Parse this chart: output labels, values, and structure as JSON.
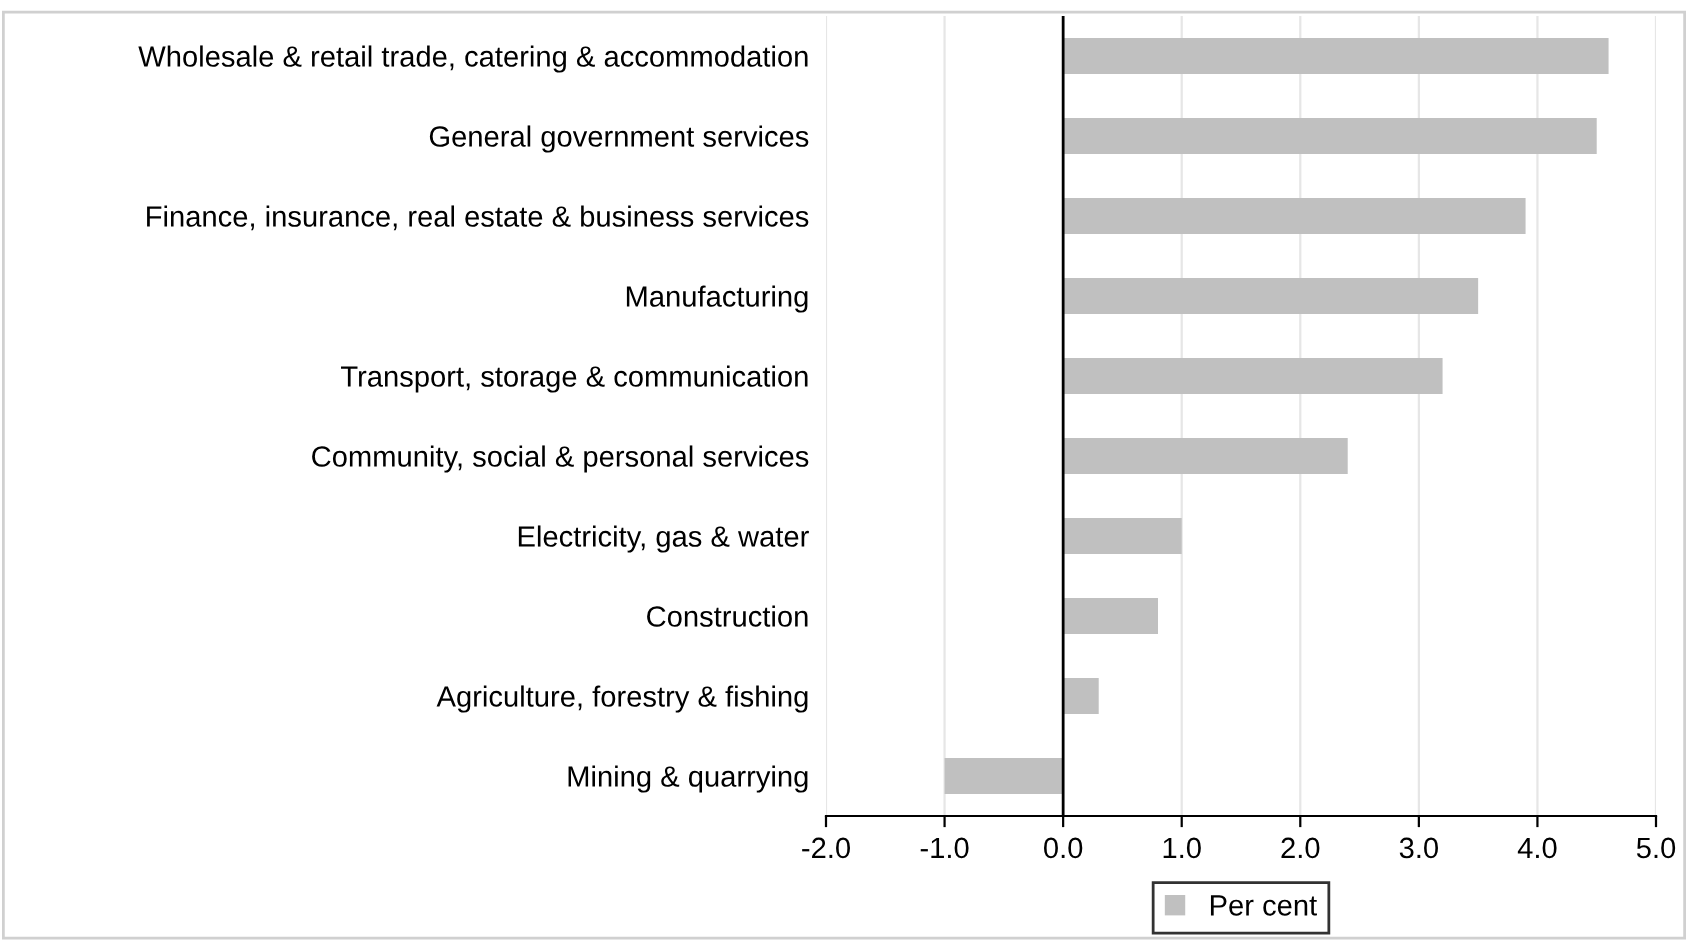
{
  "chart_data": {
    "type": "bar",
    "orientation": "horizontal",
    "categories": [
      "Wholesale & retail trade, catering & accommodation",
      "General government services",
      "Finance, insurance, real estate & business services",
      "Manufacturing",
      "Transport, storage & communication",
      "Community, social & personal services",
      "Electricity, gas & water",
      "Construction",
      "Agriculture, forestry & fishing",
      "Mining & quarrying"
    ],
    "series": [
      {
        "name": "Per cent",
        "color": "#c0c0c0",
        "values": [
          4.6,
          4.5,
          3.9,
          3.5,
          3.2,
          2.4,
          1.0,
          0.8,
          0.3,
          -1.0
        ]
      }
    ],
    "xlim": [
      -2.0,
      5.0
    ],
    "xticks": [
      {
        "value": -2,
        "label": "-2.0"
      },
      {
        "value": -1,
        "label": "-1.0"
      },
      {
        "value": 0,
        "label": "0.0"
      },
      {
        "value": 1,
        "label": "1.0"
      },
      {
        "value": 2,
        "label": "2.0"
      },
      {
        "value": 3,
        "label": "3.0"
      },
      {
        "value": 4,
        "label": "4.0"
      },
      {
        "value": 5,
        "label": "5.0"
      }
    ],
    "grid": "x",
    "legend": "bottom"
  }
}
